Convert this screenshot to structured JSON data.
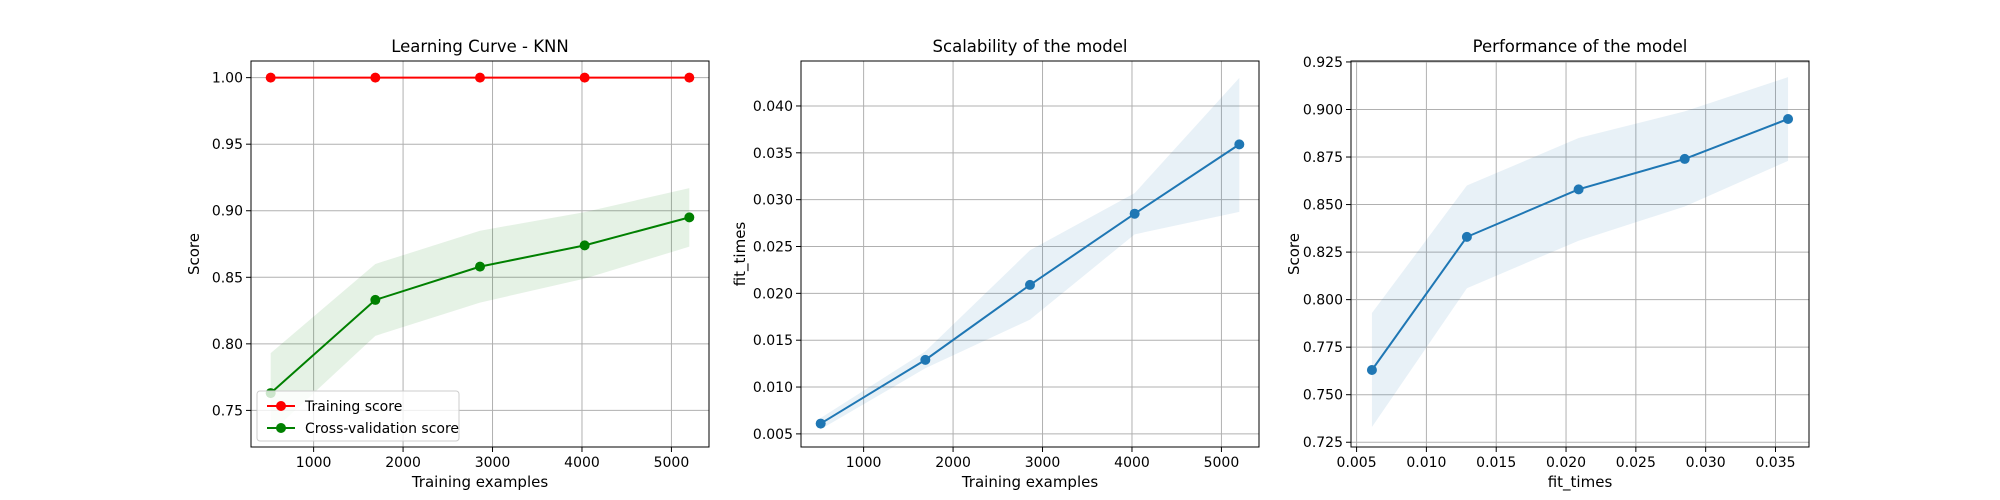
{
  "chart_data": [
    {
      "type": "line",
      "title": "Learning Curve - KNN",
      "xlabel": "Training examples",
      "ylabel": "Score",
      "xlim": [
        300,
        5420
      ],
      "ylim": [
        0.7225,
        1.0125
      ],
      "xticks": [
        1000,
        2000,
        3000,
        4000,
        5000
      ],
      "xtick_labels": [
        "1000",
        "2000",
        "3000",
        "4000",
        "5000"
      ],
      "yticks": [
        0.75,
        0.8,
        0.85,
        0.9,
        0.95,
        1.0
      ],
      "ytick_labels": [
        "0.75",
        "0.80",
        "0.85",
        "0.90",
        "0.95",
        "1.00"
      ],
      "grid": true,
      "legend": "lower-left",
      "x": [
        520,
        1690,
        2860,
        4030,
        5200
      ],
      "series": [
        {
          "name": "Training score",
          "color": "#ff0000",
          "values": [
            1.0,
            1.0,
            1.0,
            1.0,
            1.0
          ],
          "band_lower": [
            1.0,
            1.0,
            1.0,
            1.0,
            1.0
          ],
          "band_upper": [
            1.0,
            1.0,
            1.0,
            1.0,
            1.0
          ],
          "band_color": "#ff0000"
        },
        {
          "name": "Cross-validation score",
          "color": "#008000",
          "values": [
            0.763,
            0.833,
            0.858,
            0.874,
            0.895
          ],
          "band_lower": [
            0.733,
            0.806,
            0.831,
            0.849,
            0.873
          ],
          "band_upper": [
            0.793,
            0.86,
            0.885,
            0.899,
            0.917
          ],
          "band_color": "#008000"
        }
      ]
    },
    {
      "type": "line",
      "title": "Scalability of the model",
      "xlabel": "Training examples",
      "ylabel": "fit_times",
      "xlim": [
        300,
        5420
      ],
      "ylim": [
        0.0036,
        0.0448
      ],
      "xticks": [
        1000,
        2000,
        3000,
        4000,
        5000
      ],
      "xtick_labels": [
        "1000",
        "2000",
        "3000",
        "4000",
        "5000"
      ],
      "yticks": [
        0.005,
        0.01,
        0.015,
        0.02,
        0.025,
        0.03,
        0.035,
        0.04
      ],
      "ytick_labels": [
        "0.005",
        "0.010",
        "0.015",
        "0.020",
        "0.025",
        "0.030",
        "0.035",
        "0.040"
      ],
      "grid": true,
      "x": [
        520,
        1690,
        2860,
        4030,
        5200
      ],
      "series": [
        {
          "name": "",
          "color": "#1f77b4",
          "values": [
            0.0061,
            0.0129,
            0.0209,
            0.0285,
            0.0359
          ],
          "band_lower": [
            0.0055,
            0.012,
            0.0172,
            0.0263,
            0.0287
          ],
          "band_upper": [
            0.0067,
            0.0138,
            0.0246,
            0.0307,
            0.043
          ],
          "band_color": "#1f77b4"
        }
      ]
    },
    {
      "type": "line",
      "title": "Performance of the model",
      "xlabel": "fit_times",
      "ylabel": "Score",
      "xlim": [
        0.0046,
        0.0374
      ],
      "ylim": [
        0.7225,
        0.9255
      ],
      "xticks": [
        0.005,
        0.01,
        0.015,
        0.02,
        0.025,
        0.03,
        0.035
      ],
      "xtick_labels": [
        "0.005",
        "0.010",
        "0.015",
        "0.020",
        "0.025",
        "0.030",
        "0.035"
      ],
      "yticks": [
        0.725,
        0.75,
        0.775,
        0.8,
        0.825,
        0.85,
        0.875,
        0.9,
        0.925
      ],
      "ytick_labels": [
        "0.725",
        "0.750",
        "0.775",
        "0.800",
        "0.825",
        "0.850",
        "0.875",
        "0.900",
        "0.925"
      ],
      "grid": true,
      "x": [
        0.0061,
        0.0129,
        0.0209,
        0.0285,
        0.0359
      ],
      "series": [
        {
          "name": "",
          "color": "#1f77b4",
          "values": [
            0.763,
            0.833,
            0.858,
            0.874,
            0.895
          ],
          "band_lower": [
            0.733,
            0.806,
            0.831,
            0.849,
            0.873
          ],
          "band_upper": [
            0.793,
            0.86,
            0.885,
            0.899,
            0.917
          ],
          "band_color": "#1f77b4"
        }
      ]
    }
  ]
}
